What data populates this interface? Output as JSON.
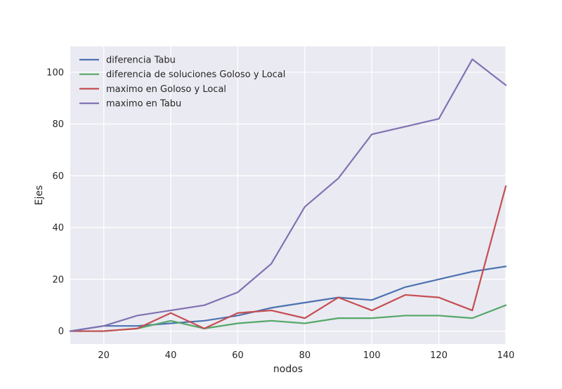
{
  "chart_data": {
    "type": "line",
    "title": "",
    "xlabel": "nodos",
    "ylabel": "Ejes",
    "xlim": [
      10,
      140
    ],
    "ylim": [
      -5,
      110
    ],
    "xticks": [
      20,
      40,
      60,
      80,
      100,
      120,
      140
    ],
    "yticks": [
      0,
      20,
      40,
      60,
      80,
      100
    ],
    "grid": true,
    "legend_position": "top-left",
    "x": [
      10,
      20,
      30,
      40,
      50,
      60,
      70,
      80,
      90,
      100,
      110,
      120,
      130,
      140
    ],
    "series": [
      {
        "name": "diferencia Tabu",
        "color": "#4C72B0",
        "values": [
          0,
          2,
          2,
          3,
          4,
          6,
          9,
          11,
          13,
          12,
          17,
          20,
          23,
          25
        ]
      },
      {
        "name": "diferencia de soluciones Goloso y Local",
        "color": "#55A868",
        "values": [
          0,
          0,
          1,
          4,
          1,
          3,
          4,
          3,
          5,
          5,
          6,
          6,
          5,
          10
        ]
      },
      {
        "name": "maximo en Goloso y Local",
        "color": "#C44E52",
        "values": [
          0,
          0,
          1,
          7,
          1,
          7,
          8,
          5,
          13,
          8,
          14,
          13,
          8,
          56
        ]
      },
      {
        "name": "maximo en Tabu",
        "color": "#8172B2",
        "values": [
          0,
          2,
          6,
          8,
          10,
          15,
          26,
          48,
          59,
          76,
          79,
          82,
          105,
          95
        ]
      }
    ]
  }
}
